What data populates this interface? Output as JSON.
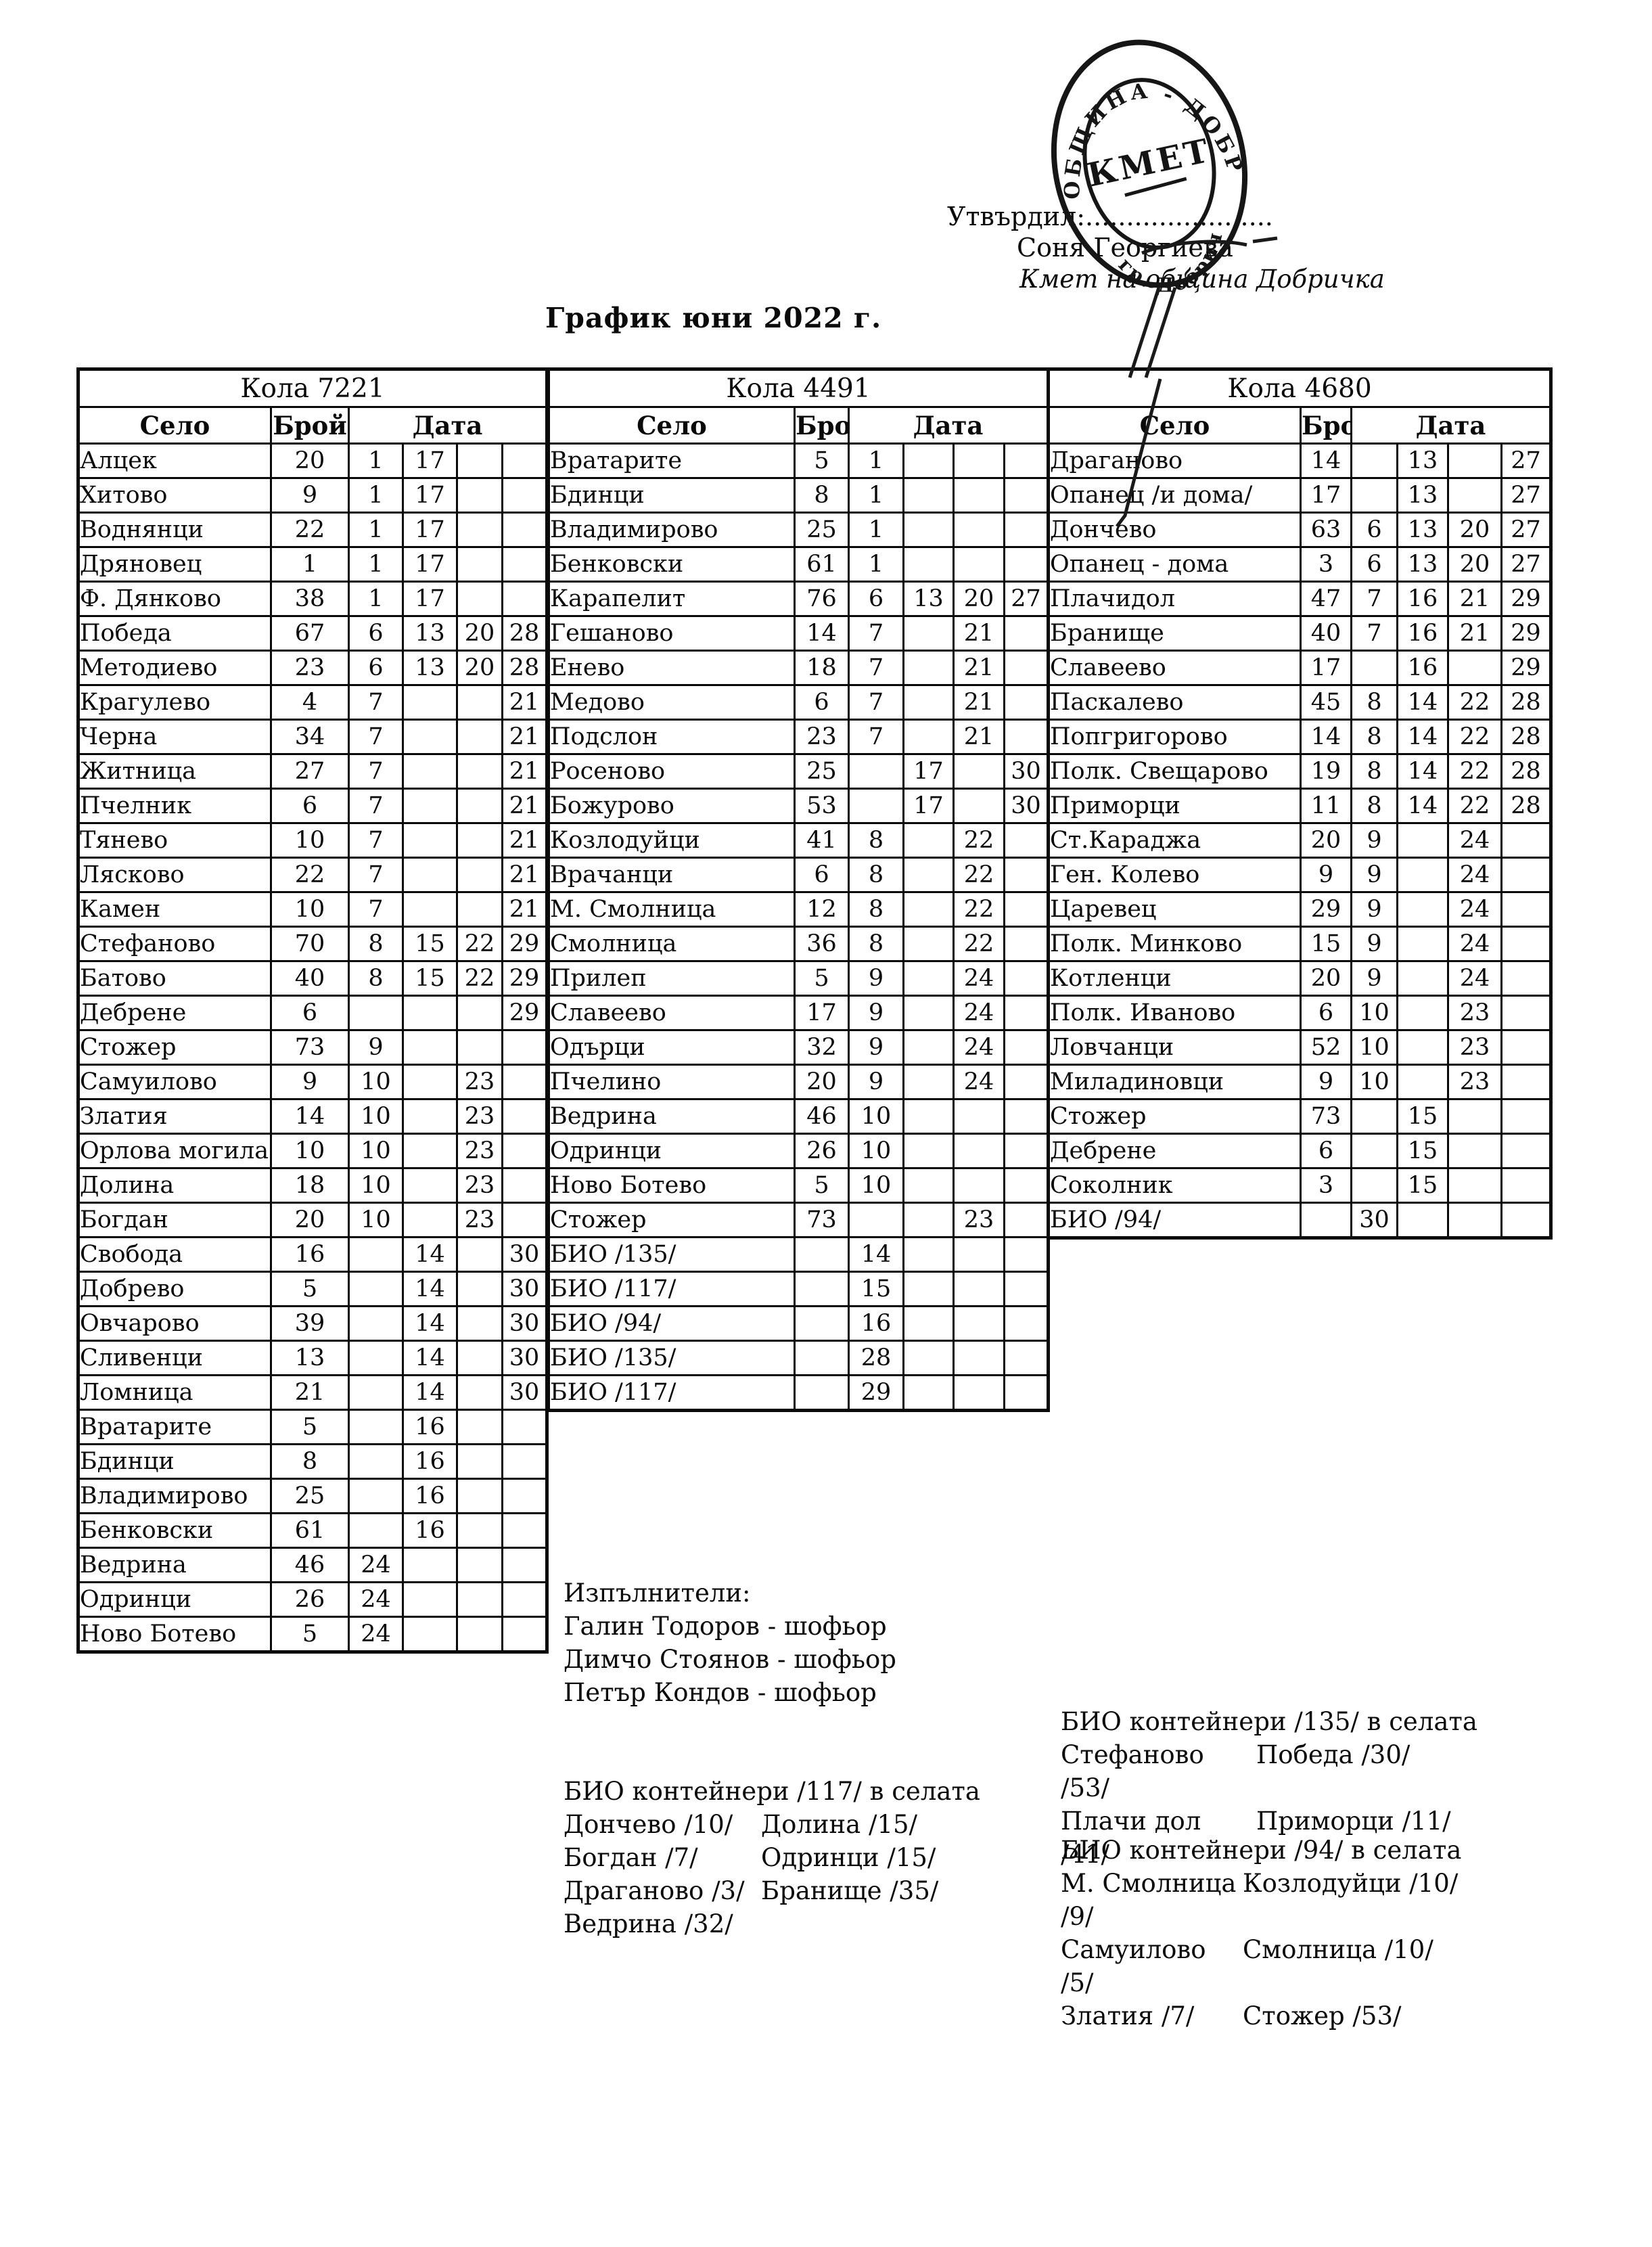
{
  "title": "График юни 2022 г.",
  "approval": {
    "label": "Утвърдил:.......................",
    "name": "Соня Георгиева",
    "role": "Кмет  на община Добричка"
  },
  "stamp": {
    "arc_top": "ОБЩИНА - ДОБРИЧ",
    "arc_bottom": "гр. Добрич",
    "center": "КМЕТ"
  },
  "col_headers": {
    "village": "Село",
    "count": "Брой",
    "date": "Дата"
  },
  "tables": [
    {
      "name": "Кола 7221",
      "rows": [
        [
          "Алцек",
          "20",
          "1",
          "17",
          "",
          ""
        ],
        [
          "Хитово",
          "9",
          "1",
          "17",
          "",
          ""
        ],
        [
          "Воднянци",
          "22",
          "1",
          "17",
          "",
          ""
        ],
        [
          "Дряновец",
          "1",
          "1",
          "17",
          "",
          ""
        ],
        [
          "Ф. Дянково",
          "38",
          "1",
          "17",
          "",
          ""
        ],
        [
          "Победа",
          "67",
          "6",
          "13",
          "20",
          "28"
        ],
        [
          "Методиево",
          "23",
          "6",
          "13",
          "20",
          "28"
        ],
        [
          "Крагулево",
          "4",
          "7",
          "",
          "",
          "21"
        ],
        [
          "Черна",
          "34",
          "7",
          "",
          "",
          "21"
        ],
        [
          "Житница",
          "27",
          "7",
          "",
          "",
          "21"
        ],
        [
          "Пчелник",
          "6",
          "7",
          "",
          "",
          "21"
        ],
        [
          "Тянево",
          "10",
          "7",
          "",
          "",
          "21"
        ],
        [
          "Лясково",
          "22",
          "7",
          "",
          "",
          "21"
        ],
        [
          "Камен",
          "10",
          "7",
          "",
          "",
          "21"
        ],
        [
          "Стефаново",
          "70",
          "8",
          "15",
          "22",
          "29"
        ],
        [
          "Батово",
          "40",
          "8",
          "15",
          "22",
          "29"
        ],
        [
          "Дебрене",
          "6",
          "",
          "",
          "",
          "29"
        ],
        [
          "Стожер",
          "73",
          "9",
          "",
          "",
          ""
        ],
        [
          "Самуилово",
          "9",
          "10",
          "",
          "23",
          ""
        ],
        [
          "Златия",
          "14",
          "10",
          "",
          "23",
          ""
        ],
        [
          "Орлова могила",
          "10",
          "10",
          "",
          "23",
          ""
        ],
        [
          "Долина",
          "18",
          "10",
          "",
          "23",
          ""
        ],
        [
          "Богдан",
          "20",
          "10",
          "",
          "23",
          ""
        ],
        [
          "Свобода",
          "16",
          "",
          "14",
          "",
          "30"
        ],
        [
          "Добрево",
          "5",
          "",
          "14",
          "",
          "30"
        ],
        [
          "Овчарово",
          "39",
          "",
          "14",
          "",
          "30"
        ],
        [
          "Сливенци",
          "13",
          "",
          "14",
          "",
          "30"
        ],
        [
          "Ломница",
          "21",
          "",
          "14",
          "",
          "30"
        ],
        [
          "Вратарите",
          "5",
          "",
          "16",
          "",
          ""
        ],
        [
          "Бдинци",
          "8",
          "",
          "16",
          "",
          ""
        ],
        [
          "Владимирово",
          "25",
          "",
          "16",
          "",
          ""
        ],
        [
          "Бенковски",
          "61",
          "",
          "16",
          "",
          ""
        ],
        [
          "Ведрина",
          "46",
          "24",
          "",
          "",
          ""
        ],
        [
          "Одринци",
          "26",
          "24",
          "",
          "",
          ""
        ],
        [
          "Ново Ботево",
          "5",
          "24",
          "",
          "",
          ""
        ]
      ]
    },
    {
      "name": "Кола 4491",
      "rows": [
        [
          "Вратарите",
          "5",
          "1",
          "",
          "",
          ""
        ],
        [
          "Бдинци",
          "8",
          "1",
          "",
          "",
          ""
        ],
        [
          "Владимирово",
          "25",
          "1",
          "",
          "",
          ""
        ],
        [
          "Бенковски",
          "61",
          "1",
          "",
          "",
          ""
        ],
        [
          "Карапелит",
          "76",
          "6",
          "13",
          "20",
          "27"
        ],
        [
          "Гешаново",
          "14",
          "7",
          "",
          "21",
          ""
        ],
        [
          "Енево",
          "18",
          "7",
          "",
          "21",
          ""
        ],
        [
          "Медово",
          "6",
          "7",
          "",
          "21",
          ""
        ],
        [
          "Подслон",
          "23",
          "7",
          "",
          "21",
          ""
        ],
        [
          "Росеново",
          "25",
          "",
          "17",
          "",
          "30"
        ],
        [
          "Божурово",
          "53",
          "",
          "17",
          "",
          "30"
        ],
        [
          "Козлодуйци",
          "41",
          "8",
          "",
          "22",
          ""
        ],
        [
          "Врачанци",
          "6",
          "8",
          "",
          "22",
          ""
        ],
        [
          "М. Смолница",
          "12",
          "8",
          "",
          "22",
          ""
        ],
        [
          "Смолница",
          "36",
          "8",
          "",
          "22",
          ""
        ],
        [
          "Прилеп",
          "5",
          "9",
          "",
          "24",
          ""
        ],
        [
          "Славеево",
          "17",
          "9",
          "",
          "24",
          ""
        ],
        [
          "Одърци",
          "32",
          "9",
          "",
          "24",
          ""
        ],
        [
          "Пчелино",
          "20",
          "9",
          "",
          "24",
          ""
        ],
        [
          "Ведрина",
          "46",
          "10",
          "",
          "",
          ""
        ],
        [
          "Одринци",
          "26",
          "10",
          "",
          "",
          ""
        ],
        [
          "Ново Ботево",
          "5",
          "10",
          "",
          "",
          ""
        ],
        [
          "Стожер",
          "73",
          "",
          "",
          "23",
          ""
        ],
        [
          "БИО /135/",
          "",
          "14",
          "",
          "",
          ""
        ],
        [
          "БИО /117/",
          "",
          "15",
          "",
          "",
          ""
        ],
        [
          "БИО /94/",
          "",
          "16",
          "",
          "",
          ""
        ],
        [
          "БИО /135/",
          "",
          "28",
          "",
          "",
          ""
        ],
        [
          "БИО /117/",
          "",
          "29",
          "",
          "",
          ""
        ]
      ]
    },
    {
      "name": "Кола 4680",
      "rows": [
        [
          "Драганово",
          "14",
          "",
          "13",
          "",
          "27"
        ],
        [
          "Опанец /и дома/",
          "17",
          "",
          "13",
          "",
          "27"
        ],
        [
          "Дончево",
          "63",
          "6",
          "13",
          "20",
          "27"
        ],
        [
          "Опанец - дома",
          "3",
          "6",
          "13",
          "20",
          "27"
        ],
        [
          "Плачидол",
          "47",
          "7",
          "16",
          "21",
          "29"
        ],
        [
          "Бранище",
          "40",
          "7",
          "16",
          "21",
          "29"
        ],
        [
          "Славеево",
          "17",
          "",
          "16",
          "",
          "29"
        ],
        [
          "Паскалево",
          "45",
          "8",
          "14",
          "22",
          "28"
        ],
        [
          "Попгригорово",
          "14",
          "8",
          "14",
          "22",
          "28"
        ],
        [
          "Полк. Свещарово",
          "19",
          "8",
          "14",
          "22",
          "28"
        ],
        [
          "Приморци",
          "11",
          "8",
          "14",
          "22",
          "28"
        ],
        [
          "Ст.Караджа",
          "20",
          "9",
          "",
          "24",
          ""
        ],
        [
          "Ген. Колево",
          "9",
          "9",
          "",
          "24",
          ""
        ],
        [
          "Царевец",
          "29",
          "9",
          "",
          "24",
          ""
        ],
        [
          "Полк. Минково",
          "15",
          "9",
          "",
          "24",
          ""
        ],
        [
          "Котленци",
          "20",
          "9",
          "",
          "24",
          ""
        ],
        [
          "Полк. Иваново",
          "6",
          "10",
          "",
          "23",
          ""
        ],
        [
          "Ловчанци",
          "52",
          "10",
          "",
          "23",
          ""
        ],
        [
          "Миладиновци",
          "9",
          "10",
          "",
          "23",
          ""
        ],
        [
          "Стожер",
          "73",
          "",
          "15",
          "",
          ""
        ],
        [
          "Дебрене",
          "6",
          "",
          "15",
          "",
          ""
        ],
        [
          "Соколник",
          "3",
          "",
          "15",
          "",
          ""
        ],
        [
          "БИО /94/",
          "",
          "30",
          "",
          "",
          ""
        ]
      ]
    }
  ],
  "executors": {
    "title": "Изпълнители:",
    "lines": [
      "Галин Тодоров - шофьор",
      "Димчо Стоянов - шофьор",
      "Петър Кондов - шофьор"
    ]
  },
  "bio_blocks": [
    {
      "title": "БИО контейнери /117/ в селата",
      "rows": [
        [
          "Дончево /10/",
          "Долина /15/"
        ],
        [
          "Богдан /7/",
          "Одринци /15/"
        ],
        [
          "Драганово /3/",
          "Бранище /35/"
        ],
        [
          "Ведрина /32/",
          ""
        ]
      ]
    },
    {
      "title": "БИО контейнери /135/ в селата",
      "rows": [
        [
          "Стефаново /53/",
          "Победа /30/"
        ],
        [
          "Плачи дол /41/",
          "Приморци /11/"
        ]
      ]
    },
    {
      "title": "БИО контейнери /94/ в селата",
      "rows": [
        [
          "М. Смолница /9/",
          "Козлодуйци /10/"
        ],
        [
          "Самуилово /5/",
          "Смолница /10/"
        ],
        [
          "Златия /7/",
          "Стожер /53/"
        ]
      ]
    }
  ]
}
